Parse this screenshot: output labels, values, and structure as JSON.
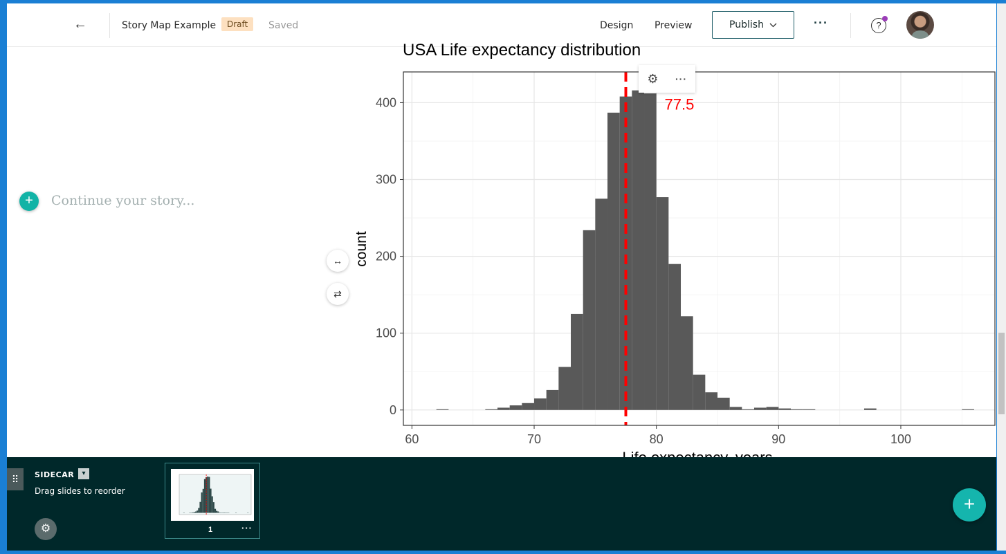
{
  "header": {
    "back_icon": "←",
    "story_title": "Story Map Example",
    "draft_badge": "Draft",
    "saved_status": "Saved",
    "design_tab": "Design",
    "preview_tab": "Preview",
    "publish_label": "Publish",
    "more_label": "···",
    "help_label": "?"
  },
  "narrative": {
    "placeholder": "Continue your story..."
  },
  "side_controls": {
    "resize_icon": "↔",
    "swap_icon": "⇄"
  },
  "chart_toolbar": {
    "gear_icon": "⚙",
    "more_label": "···"
  },
  "sidecar": {
    "title": "SIDECAR",
    "drag_hint": "Drag slides to reorder",
    "slide_number": "1",
    "slide_more": "···",
    "add_slide": "+"
  },
  "chart_data": {
    "type": "bar",
    "title": "USA Life expectancy distribution",
    "xlabel": "Life expectancy, years",
    "ylabel": "count",
    "xlim": [
      59.3,
      107.7
    ],
    "ylim": [
      -20,
      440
    ],
    "x_ticks": [
      60,
      70,
      80,
      90,
      100
    ],
    "y_ticks": [
      0,
      100,
      200,
      300,
      400
    ],
    "bin_width": 1,
    "bins": [
      {
        "x": 62.5,
        "count": 1
      },
      {
        "x": 66.5,
        "count": 1
      },
      {
        "x": 67.5,
        "count": 3
      },
      {
        "x": 68.5,
        "count": 6
      },
      {
        "x": 69.5,
        "count": 9
      },
      {
        "x": 70.5,
        "count": 15
      },
      {
        "x": 71.5,
        "count": 26
      },
      {
        "x": 72.5,
        "count": 56
      },
      {
        "x": 73.5,
        "count": 125
      },
      {
        "x": 74.5,
        "count": 234
      },
      {
        "x": 75.5,
        "count": 275
      },
      {
        "x": 76.5,
        "count": 387
      },
      {
        "x": 77.5,
        "count": 408
      },
      {
        "x": 78.5,
        "count": 416
      },
      {
        "x": 79.5,
        "count": 412
      },
      {
        "x": 80.5,
        "count": 277
      },
      {
        "x": 81.5,
        "count": 190
      },
      {
        "x": 82.5,
        "count": 122
      },
      {
        "x": 83.5,
        "count": 46
      },
      {
        "x": 84.5,
        "count": 23
      },
      {
        "x": 85.5,
        "count": 16
      },
      {
        "x": 86.5,
        "count": 4
      },
      {
        "x": 87.5,
        "count": 1
      },
      {
        "x": 88.5,
        "count": 3
      },
      {
        "x": 89.5,
        "count": 4
      },
      {
        "x": 90.5,
        "count": 2
      },
      {
        "x": 91.5,
        "count": 1
      },
      {
        "x": 92.5,
        "count": 1
      },
      {
        "x": 97.5,
        "count": 2
      },
      {
        "x": 105.5,
        "count": 1
      }
    ],
    "mean_line": {
      "x": 77.5,
      "label": "77.5",
      "color": "#ff0000"
    },
    "bar_color": "#595959",
    "grid": true
  }
}
